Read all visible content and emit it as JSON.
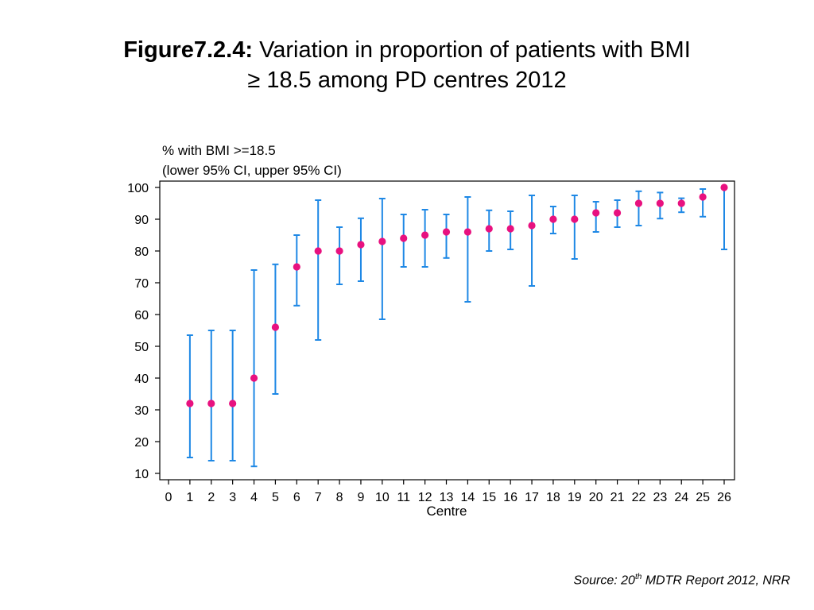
{
  "title": {
    "prefix": "Figure7.2.4:",
    "line1": "Variation in proportion of patients with BMI",
    "line2": "≥ 18.5 among PD centres 2012"
  },
  "source": {
    "prefix": "Source: 20",
    "sup": "th",
    "suffix": " MDTR Report 2012, NRR"
  },
  "colors": {
    "point": "#e8117f",
    "errorbar": "#1e88e5",
    "axis": "#000000"
  },
  "chart_data": {
    "type": "scatter",
    "ytitle_line1": "% with BMI >=18.5",
    "ytitle_line2": "(lower 95% CI, upper 95% CI)",
    "xlabel": "Centre",
    "xlim": [
      0,
      26
    ],
    "ylim": [
      8,
      102
    ],
    "yticks": [
      10,
      20,
      30,
      40,
      50,
      60,
      70,
      80,
      90,
      100
    ],
    "xticks": [
      0,
      1,
      2,
      3,
      4,
      5,
      6,
      7,
      8,
      9,
      10,
      11,
      12,
      13,
      14,
      15,
      16,
      17,
      18,
      19,
      20,
      21,
      22,
      23,
      24,
      25,
      26
    ],
    "grid": false,
    "points": [
      {
        "centre": 1,
        "value": 32,
        "lower": 15,
        "upper": 53.5
      },
      {
        "centre": 2,
        "value": 32,
        "lower": 14,
        "upper": 55
      },
      {
        "centre": 3,
        "value": 32,
        "lower": 14,
        "upper": 55
      },
      {
        "centre": 4,
        "value": 40,
        "lower": 12.2,
        "upper": 74
      },
      {
        "centre": 5,
        "value": 56,
        "lower": 35,
        "upper": 75.8
      },
      {
        "centre": 6,
        "value": 75,
        "lower": 62.8,
        "upper": 85
      },
      {
        "centre": 7,
        "value": 80,
        "lower": 52,
        "upper": 96
      },
      {
        "centre": 8,
        "value": 80,
        "lower": 69.5,
        "upper": 87.5
      },
      {
        "centre": 9,
        "value": 82,
        "lower": 70.5,
        "upper": 90.3
      },
      {
        "centre": 10,
        "value": 83,
        "lower": 58.5,
        "upper": 96.5
      },
      {
        "centre": 11,
        "value": 84,
        "lower": 75,
        "upper": 91.5
      },
      {
        "centre": 12,
        "value": 85,
        "lower": 75,
        "upper": 93
      },
      {
        "centre": 13,
        "value": 86,
        "lower": 77.8,
        "upper": 91.5
      },
      {
        "centre": 14,
        "value": 86,
        "lower": 64,
        "upper": 97
      },
      {
        "centre": 15,
        "value": 87,
        "lower": 80,
        "upper": 92.8
      },
      {
        "centre": 16,
        "value": 87,
        "lower": 80.5,
        "upper": 92.5
      },
      {
        "centre": 17,
        "value": 88,
        "lower": 69,
        "upper": 97.5
      },
      {
        "centre": 18,
        "value": 90,
        "lower": 85.5,
        "upper": 94
      },
      {
        "centre": 19,
        "value": 90,
        "lower": 77.5,
        "upper": 97.5
      },
      {
        "centre": 20,
        "value": 92,
        "lower": 86,
        "upper": 95.5
      },
      {
        "centre": 21,
        "value": 92,
        "lower": 87.5,
        "upper": 96
      },
      {
        "centre": 22,
        "value": 95,
        "lower": 88,
        "upper": 98.8
      },
      {
        "centre": 23,
        "value": 95,
        "lower": 90.2,
        "upper": 98.4
      },
      {
        "centre": 24,
        "value": 95,
        "lower": 92.2,
        "upper": 96.6
      },
      {
        "centre": 25,
        "value": 97,
        "lower": 90.8,
        "upper": 99.5
      },
      {
        "centre": 26,
        "value": 100,
        "lower": 80.5,
        "upper": 100
      }
    ]
  }
}
